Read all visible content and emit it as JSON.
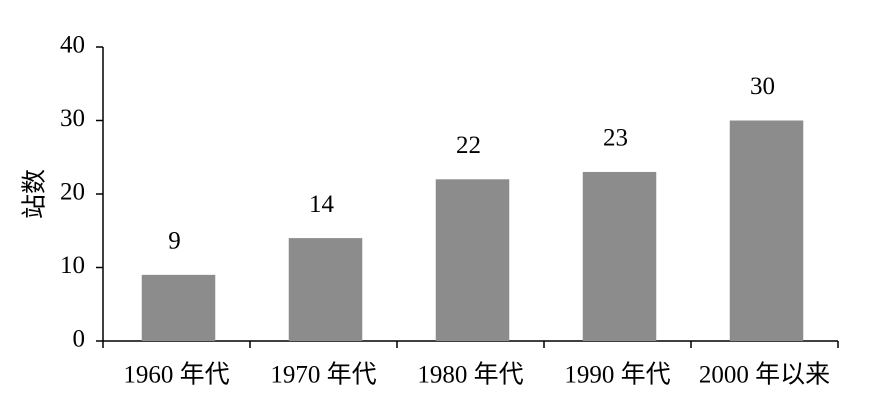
{
  "chart_data": {
    "type": "bar",
    "y_label": "站数",
    "categories": [
      "1960 年代",
      "1970 年代",
      "1980 年代",
      "1990 年代",
      "2000 年以来"
    ],
    "values": [
      9,
      14,
      22,
      23,
      30
    ],
    "color": "#8c8c8c",
    "ylim": [
      0,
      40
    ],
    "yticks": [
      0,
      10,
      20,
      30,
      40
    ],
    "grid": false
  }
}
